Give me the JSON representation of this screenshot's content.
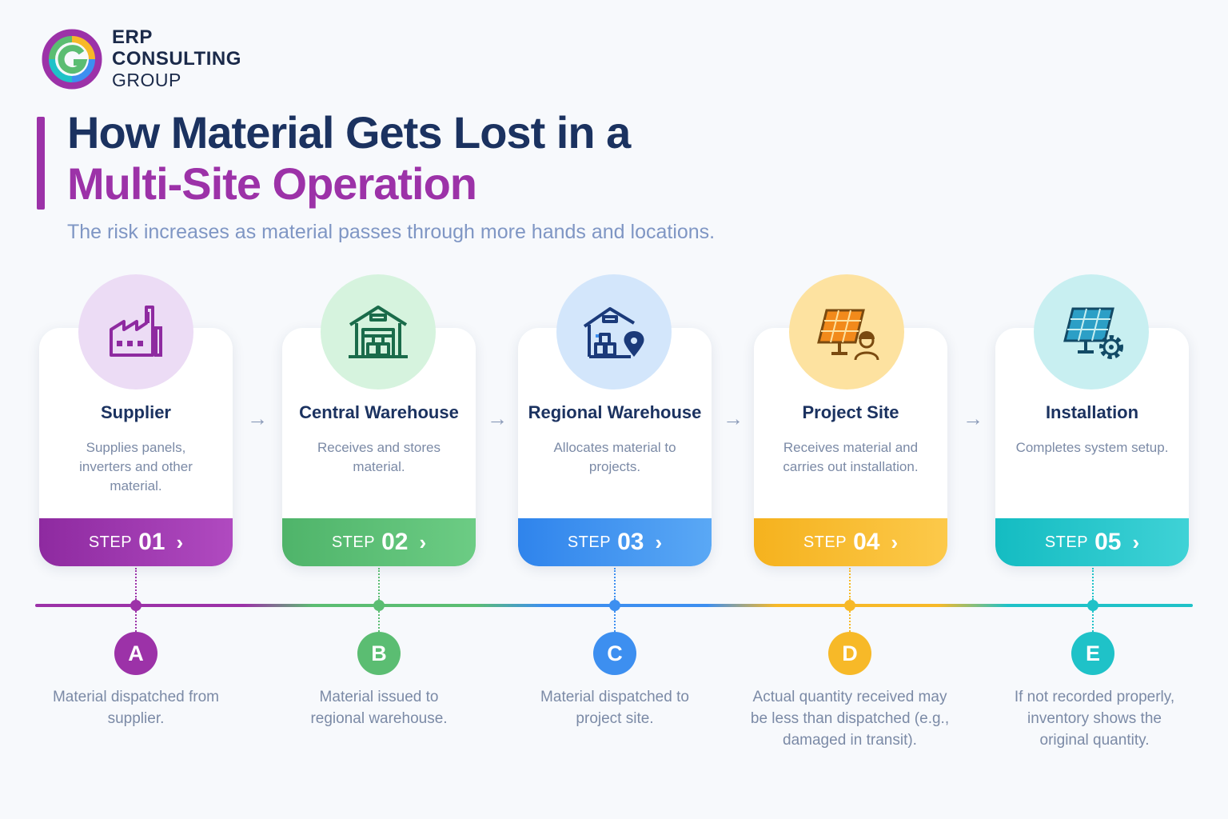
{
  "logo": {
    "line1": "ERP",
    "line2": "CONSULTING",
    "line3": "GROUP"
  },
  "title": {
    "line1": "How Material Gets Lost in a",
    "line2": "Multi-Site Operation"
  },
  "subtitle": "The risk increases as material passes through more hands and locations.",
  "steps": [
    {
      "title": "Supplier",
      "desc": "Supplies panels, inverters and other material.",
      "step_word": "STEP",
      "step_num": "01",
      "color": "#9c32a8",
      "icon": "factory-icon"
    },
    {
      "title": "Central Warehouse",
      "desc": "Receives and stores material.",
      "step_word": "STEP",
      "step_num": "02",
      "color": "#5bbd72",
      "icon": "warehouse-icon"
    },
    {
      "title": "Regional Warehouse",
      "desc": "Allocates material to projects.",
      "step_word": "STEP",
      "step_num": "03",
      "color": "#3d8ff0",
      "icon": "warehouse-location-icon"
    },
    {
      "title": "Project Site",
      "desc": "Receives material and carries out installation.",
      "step_word": "STEP",
      "step_num": "04",
      "color": "#f7b928",
      "icon": "solar-panel-worker-icon"
    },
    {
      "title": "Installation",
      "desc": "Completes system setup.",
      "step_word": "STEP",
      "step_num": "05",
      "color": "#1fc2c8",
      "icon": "solar-panel-gear-icon"
    }
  ],
  "points": [
    {
      "letter": "A",
      "desc": "Material dispatched from supplier."
    },
    {
      "letter": "B",
      "desc": "Material issued to regional warehouse."
    },
    {
      "letter": "C",
      "desc": "Material dispatched to project site."
    },
    {
      "letter": "D",
      "desc": "Actual quantity received may be less than dispatched (e.g., damaged in transit)."
    },
    {
      "letter": "E",
      "desc": "If not recorded properly, inventory shows the original quantity."
    }
  ]
}
